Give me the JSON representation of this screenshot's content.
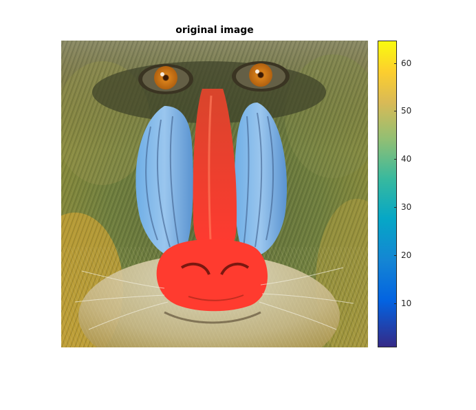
{
  "figure": {
    "title": "original image",
    "image_subject": "mandrill baboon face photograph",
    "colorbar": {
      "colormap": "parula",
      "min": 1,
      "max": 64,
      "ticks": [
        "10",
        "20",
        "30",
        "40",
        "50",
        "60"
      ],
      "tick_values": [
        10,
        20,
        30,
        40,
        50,
        60
      ]
    },
    "colors": {
      "fur": "#6f7a3a",
      "nose": "#ff3b2f",
      "cheeks": "#5fa6e6",
      "eyes": "#e08a1a",
      "beard": "#d8d2b8"
    }
  }
}
